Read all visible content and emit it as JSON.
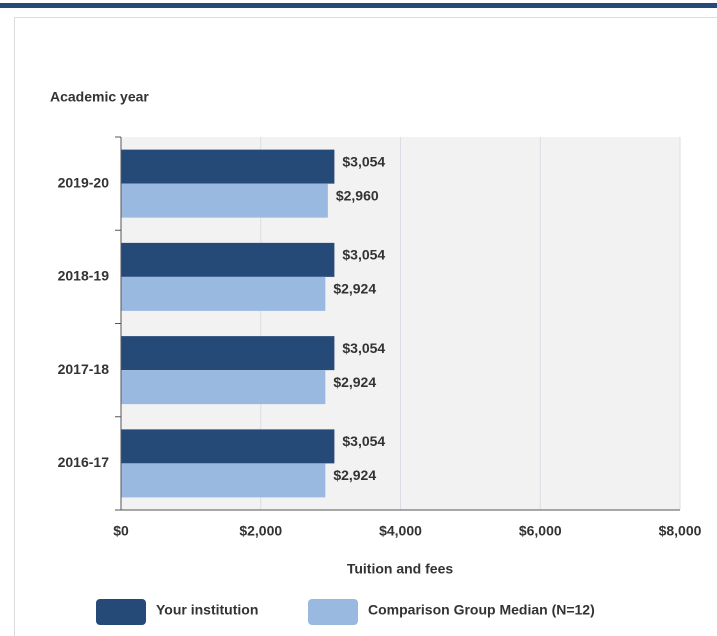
{
  "chart_data": {
    "type": "barh",
    "y_axis_label": "Academic year",
    "x_axis_label": "Tuition and fees",
    "categories": [
      "2019-20",
      "2018-19",
      "2017-18",
      "2016-17"
    ],
    "series": [
      {
        "name": "Your institution",
        "color": "#264a78",
        "values": [
          3054,
          3054,
          3054,
          3054
        ],
        "value_labels": [
          "$3,054",
          "$3,054",
          "$3,054",
          "$3,054"
        ]
      },
      {
        "name": "Comparison Group Median (N=12)",
        "color": "#9ab9e0",
        "values": [
          2960,
          2924,
          2924,
          2924
        ],
        "value_labels": [
          "$2,960",
          "$2,924",
          "$2,924",
          "$2,924"
        ]
      }
    ],
    "xlim": [
      0,
      8000
    ],
    "xticks": [
      {
        "value": 0,
        "label": "$0"
      },
      {
        "value": 2000,
        "label": "$2,000"
      },
      {
        "value": 4000,
        "label": "$4,000"
      },
      {
        "value": 6000,
        "label": "$6,000"
      },
      {
        "value": 8000,
        "label": "$8,000"
      }
    ],
    "grid": true
  }
}
